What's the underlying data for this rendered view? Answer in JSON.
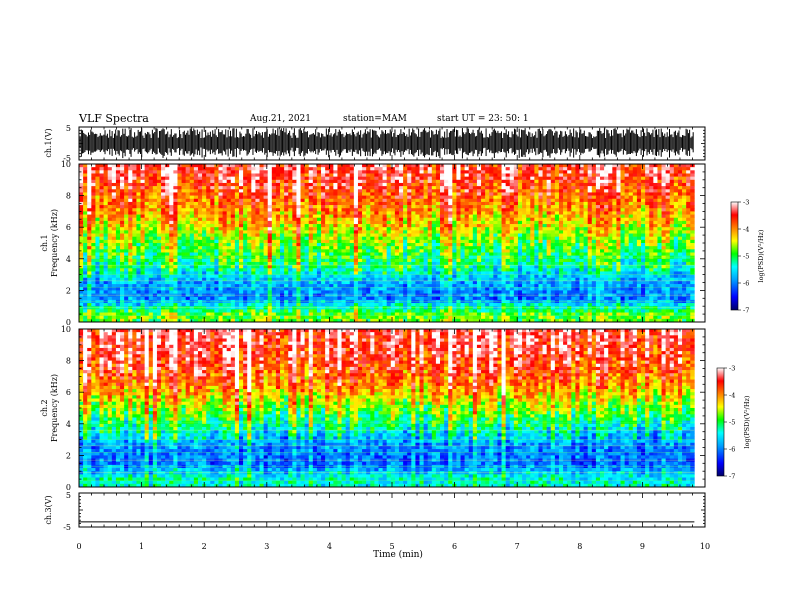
{
  "header": {
    "title": "VLF Spectra",
    "date": "Aug.21, 2021",
    "station": "station=MAM",
    "start_ut": "start UT =   23: 50: 1"
  },
  "chart_data": [
    {
      "type": "line",
      "panel": "ch1-waveform",
      "ylabel": "ch.1(V)",
      "ylim": [
        -5,
        5
      ],
      "yticks": [
        "5",
        "-5"
      ],
      "xlim": [
        0,
        10
      ],
      "description": "dense broadband noise waveform"
    },
    {
      "type": "heatmap",
      "panel": "ch1-spectrogram",
      "ylabel_line1": "ch.1",
      "ylabel_line2": "Frequency (kHz)",
      "ylim": [
        0,
        10
      ],
      "yticks": [
        "0",
        "2",
        "4",
        "6",
        "8",
        "10"
      ],
      "xlim": [
        0,
        9.83
      ],
      "colorbar": {
        "label": "log(PSD)(V²/Hz)",
        "range": [
          -7,
          -3
        ],
        "ticks": [
          "-3",
          "-4",
          "-5",
          "-6",
          "-7"
        ],
        "colormap": [
          "#000066",
          "#0000ff",
          "#00a0ff",
          "#00ffff",
          "#00ff00",
          "#ffff00",
          "#ff8000",
          "#ff0000",
          "#ffffff"
        ]
      },
      "approx_log_psd_by_freq_khz": [
        {
          "f": 0.5,
          "v": -4.8
        },
        {
          "f": 1.5,
          "v": -6.0
        },
        {
          "f": 2.5,
          "v": -5.8
        },
        {
          "f": 3.5,
          "v": -5.2
        },
        {
          "f": 4.5,
          "v": -4.9
        },
        {
          "f": 5.5,
          "v": -4.6
        },
        {
          "f": 6.5,
          "v": -4.2
        },
        {
          "f": 7.5,
          "v": -3.9
        },
        {
          "f": 8.5,
          "v": -3.6
        },
        {
          "f": 9.5,
          "v": -3.4
        }
      ]
    },
    {
      "type": "heatmap",
      "panel": "ch2-spectrogram",
      "ylabel_line1": "ch.2",
      "ylabel_line2": "Frequency (kHz)",
      "ylim": [
        0,
        10
      ],
      "yticks": [
        "0",
        "2",
        "4",
        "6",
        "8",
        "10"
      ],
      "xlim": [
        0,
        9.83
      ],
      "colorbar": {
        "label": "log(PSD)(V²/Hz)",
        "range": [
          -7,
          -3
        ],
        "ticks": [
          "-3",
          "-4",
          "-5",
          "-6",
          "-7"
        ],
        "colormap": [
          "#000066",
          "#0000ff",
          "#00a0ff",
          "#00ffff",
          "#00ff00",
          "#ffff00",
          "#ff8000",
          "#ff0000",
          "#ffffff"
        ]
      },
      "approx_log_psd_by_freq_khz": [
        {
          "f": 0.5,
          "v": -5.4
        },
        {
          "f": 1.5,
          "v": -6.1
        },
        {
          "f": 2.5,
          "v": -6.0
        },
        {
          "f": 3.5,
          "v": -5.5
        },
        {
          "f": 4.5,
          "v": -5.0
        },
        {
          "f": 5.5,
          "v": -4.5
        },
        {
          "f": 6.5,
          "v": -4.0
        },
        {
          "f": 7.5,
          "v": -3.7
        },
        {
          "f": 8.5,
          "v": -3.5
        },
        {
          "f": 9.5,
          "v": -3.4
        }
      ]
    },
    {
      "type": "line",
      "panel": "ch3-waveform",
      "ylabel": "ch.3(V)",
      "ylim": [
        -5,
        5
      ],
      "yticks": [
        "5",
        "-5"
      ],
      "xlim": [
        0,
        10
      ],
      "xlabel": "Time (min)",
      "xticks": [
        "0",
        "1",
        "2",
        "3",
        "4",
        "5",
        "6",
        "7",
        "8",
        "9",
        "10"
      ],
      "x": [
        0,
        9.83
      ],
      "y": [
        -3.5,
        -3.5
      ]
    }
  ]
}
